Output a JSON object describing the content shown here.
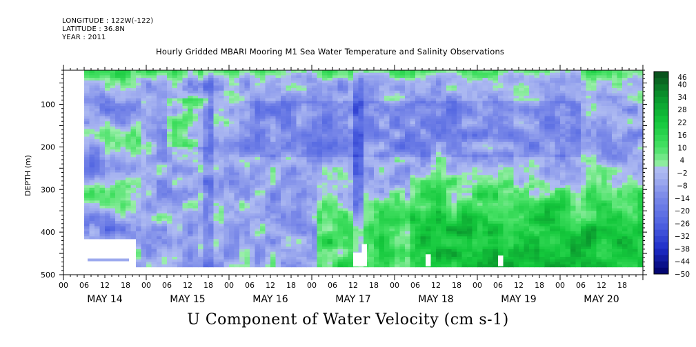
{
  "header": {
    "longitude": "LONGITUDE : 122W(-122)",
    "latitude": "LATITUDE : 36.8N",
    "year": "YEAR : 2011"
  },
  "title": "Hourly Gridded MBARI Mooring M1 Sea Water Temperature and Salinity Observations",
  "bottom_title": "U Component of Water Velocity (cm s-1)",
  "chart_data": {
    "type": "heatmap",
    "title": "Hourly Gridded MBARI Mooring M1 Sea Water Temperature and Salinity Observations",
    "variable": "U Component of Water Velocity (cm s-1)",
    "xlabel": "",
    "ylabel": "DEPTH (m)",
    "x_axis": {
      "hour_ticks": [
        "00",
        "06",
        "12",
        "18",
        "00",
        "06",
        "12",
        "18",
        "00",
        "06",
        "12",
        "18",
        "00",
        "06",
        "12",
        "18",
        "00",
        "06",
        "12",
        "18",
        "00",
        "06",
        "12",
        "18",
        "00",
        "06",
        "12",
        "18"
      ],
      "day_labels": [
        "MAY 14",
        "MAY 15",
        "MAY 16",
        "MAY 17",
        "MAY 18",
        "MAY 19",
        "MAY 20"
      ],
      "range_hours": [
        0,
        168
      ],
      "data_start_hour": 6
    },
    "y_axis": {
      "ticks": [
        100,
        200,
        300,
        400,
        500
      ],
      "range": [
        20,
        500
      ],
      "inverted": true,
      "data_max_depth": 480
    },
    "colorbar": {
      "levels": [
        46,
        40,
        34,
        28,
        22,
        16,
        10,
        4,
        -2,
        -8,
        -14,
        -20,
        -26,
        -32,
        -38,
        -44,
        -50
      ],
      "colors": {
        "high": "#0a4a1c",
        "mid_positive": "#2fd64e",
        "near_zero_positive": "#9af0a8",
        "near_zero_negative": "#a9b4f0",
        "mid_negative": "#7f8ce6",
        "low": "#000066"
      }
    },
    "summary": "Depth-time section of zonal velocity: mostly weak negative (blue) values at mid-depths, positive (green) surface flow near 20-40 m, and strong positive (green) deep flow after May 17."
  }
}
